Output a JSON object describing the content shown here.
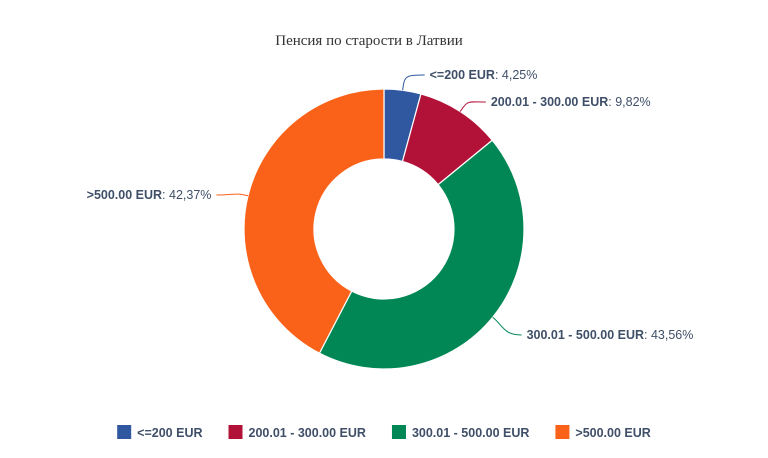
{
  "chart_data": {
    "type": "pie",
    "donut": true,
    "title": "Пенсия по старости в Латвии",
    "categories": [
      "<=200 EUR",
      "200.01 - 300.00 EUR",
      "300.01 - 500.00 EUR",
      ">500.00 EUR"
    ],
    "values": [
      4.25,
      9.82,
      43.56,
      42.37
    ],
    "value_labels": [
      "4,25%",
      "9,82%",
      "43,56%",
      "42,37%"
    ],
    "colors": [
      "#2f58a0",
      "#b31238",
      "#008755",
      "#fb6219"
    ],
    "label_color": "#3f4f68",
    "legend": {
      "position": "bottom"
    }
  }
}
